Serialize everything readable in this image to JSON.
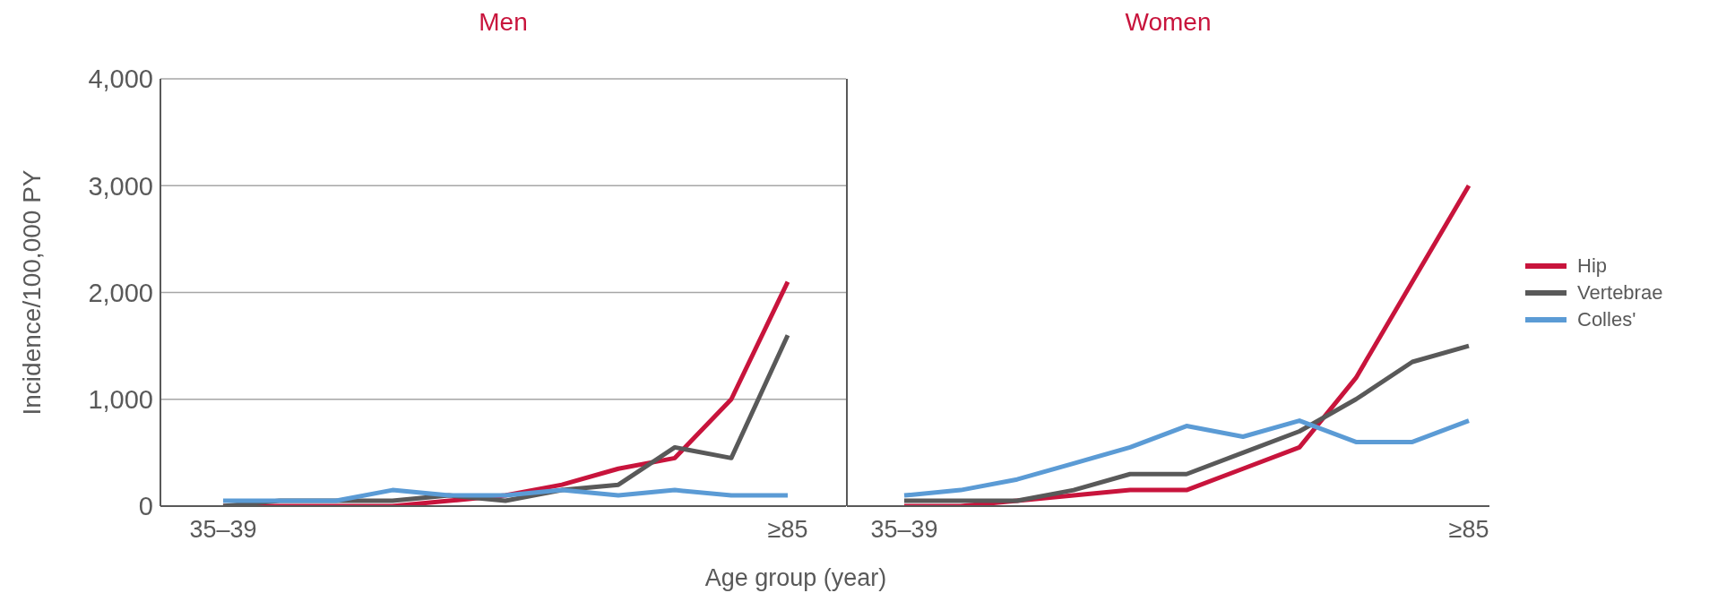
{
  "chart_data": [
    {
      "type": "line",
      "title": "Men",
      "ylabel": "Incidence/100,000 PY",
      "xlabel": "Age group (year)",
      "categories": [
        "35–39",
        null,
        null,
        null,
        null,
        null,
        null,
        null,
        null,
        null,
        "≥85"
      ],
      "ylim": [
        0,
        4000
      ],
      "yticks": [
        0,
        {
          "value": 1000,
          "label": "1,000"
        },
        {
          "value": 2000,
          "label": "2,000"
        },
        {
          "value": 3000,
          "label": "3,000"
        },
        {
          "value": 4000,
          "label": "4,000"
        }
      ],
      "grid": "y",
      "marker": "none",
      "line_style": "solid",
      "legend": false,
      "series": [
        {
          "color": "#c8143c",
          "values": [
            0,
            0,
            0,
            0,
            50,
            100,
            200,
            350,
            450,
            1000,
            2100
          ]
        },
        {
          "color": "#595959",
          "values": [
            0,
            50,
            50,
            50,
            100,
            50,
            150,
            200,
            550,
            450,
            1600
          ]
        },
        {
          "color": "#5b9bd5",
          "values": [
            50,
            50,
            50,
            150,
            100,
            100,
            150,
            100,
            150,
            100,
            100
          ]
        }
      ]
    },
    {
      "type": "line",
      "title": "Women",
      "categories": [
        "35–39",
        null,
        null,
        null,
        null,
        null,
        null,
        null,
        null,
        null,
        "≥85"
      ],
      "ylim": [
        0,
        4000
      ],
      "yticks": [
        {
          "value": 0,
          "label": null
        },
        {
          "value": 1000,
          "label": null
        },
        {
          "value": 2000,
          "label": null
        },
        {
          "value": 3000,
          "label": null
        },
        {
          "value": 4000,
          "label": null
        }
      ],
      "tick_labels": "x",
      "grid": "y",
      "marker": "none",
      "line_style": "solid",
      "legend": "right",
      "series": [
        {
          "name": "Hip",
          "color": "#c8143c",
          "values": [
            0,
            0,
            50,
            100,
            150,
            150,
            350,
            550,
            1200,
            2100,
            3000
          ]
        },
        {
          "name": "Vertebrae",
          "color": "#595959",
          "values": [
            50,
            50,
            50,
            150,
            300,
            300,
            500,
            700,
            1000,
            1350,
            1500
          ]
        },
        {
          "name": "Colles'",
          "color": "#5b9bd5",
          "values": [
            100,
            150,
            250,
            400,
            550,
            750,
            650,
            800,
            600,
            600,
            800
          ]
        }
      ]
    }
  ]
}
